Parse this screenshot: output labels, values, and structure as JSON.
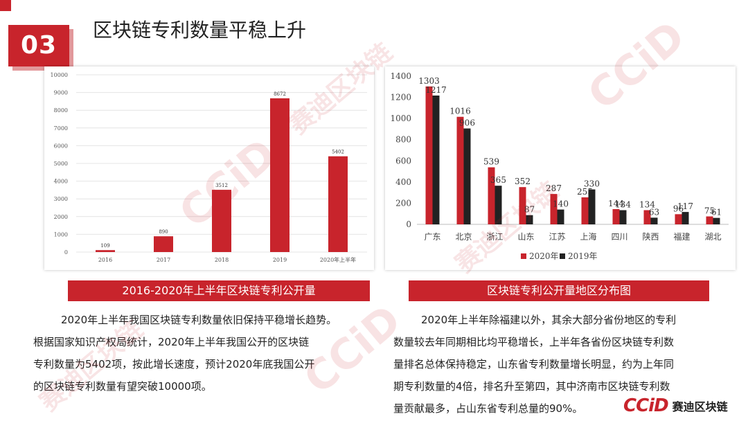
{
  "header": {
    "badge": "03",
    "title": "区块链专利数量平稳上升"
  },
  "brand": {
    "accent": "#c8242c",
    "dark": "#222222",
    "logo_main": "CCiD",
    "logo_sub": "赛迪区块链"
  },
  "captions": {
    "left": "2016-2020年上半年区块链专利公开量",
    "right": "区块链专利公开量地区分布图"
  },
  "paragraphs": {
    "left": [
      "2020年上半年我国区块链专利数量依旧保持平稳增长趋势。",
      "根据国家知识产权局统计，2020年上半年我国公开的区块链",
      "专利数量为5402项，按此增长速度，预计2020年底我国公开",
      "的区块链专利数量有望突破10000项。"
    ],
    "right": [
      "2020年上半年除福建以外，其余大部分省份地区的专利",
      "数量较去年同期相比均平稳增长，上半年各省份区块链专利数",
      "量排名总体保持稳定，山东省专利数量增长明显，约为上年同",
      "期专利数量的4倍，排名升至第四，其中济南市区块链专利数",
      "量贡献最多，占山东省专利总量的90%。"
    ]
  },
  "chart_data": [
    {
      "type": "bar",
      "categories": [
        "2016",
        "2017",
        "2018",
        "2019",
        "2020年上半年"
      ],
      "values": [
        109,
        890,
        3512,
        8672,
        5402
      ],
      "ylim": [
        0,
        10000
      ],
      "yticks": [
        0,
        1000,
        2000,
        3000,
        4000,
        5000,
        6000,
        7000,
        8000,
        9000,
        10000
      ],
      "grid": true,
      "color": "#c8242c"
    },
    {
      "type": "bar",
      "categories": [
        "广东",
        "北京",
        "浙江",
        "山东",
        "江苏",
        "上海",
        "四川",
        "陕西",
        "福建",
        "湖北"
      ],
      "series": [
        {
          "name": "2020年",
          "values": [
            1303,
            1016,
            539,
            352,
            287,
            255,
            144,
            134,
            96,
            75
          ],
          "color": "#c8242c"
        },
        {
          "name": "2019年",
          "values": [
            1217,
            906,
            365,
            87,
            140,
            330,
            134,
            63,
            117,
            61
          ],
          "color": "#222222"
        }
      ],
      "ylim": [
        0,
        1400
      ],
      "yticks": [
        0,
        200,
        400,
        600,
        800,
        1000,
        1200,
        1400
      ],
      "grid": false,
      "legend": "bottom"
    }
  ]
}
